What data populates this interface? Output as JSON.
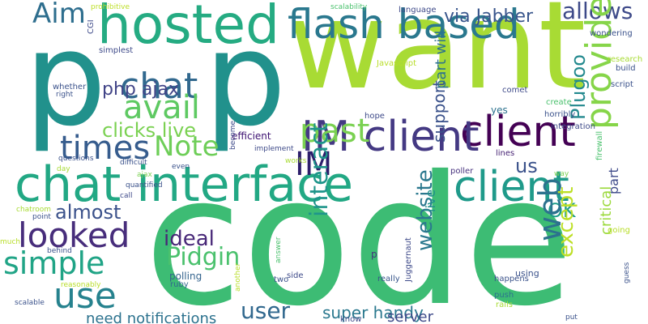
{
  "cloud": {
    "background": "#ffffff",
    "words": [
      {
        "text": "code",
        "color": "#3dbc74"
      },
      {
        "text": "want",
        "color": "#a8db34"
      },
      {
        "text": "p",
        "color": "#21918c"
      },
      {
        "text": "p",
        "color": "#21918c"
      },
      {
        "text": "hosted",
        "color": "#25ab82"
      },
      {
        "text": "flash based",
        "color": "#2a788e"
      },
      {
        "text": "chat interface",
        "color": "#22a884"
      },
      {
        "text": "client",
        "color": "#440154"
      },
      {
        "text": "IM client",
        "color": "#443983"
      },
      {
        "text": "client",
        "color": "#1f9a8a"
      },
      {
        "text": "interface",
        "color": "#2c728e"
      },
      {
        "text": "chat",
        "color": "#31688e"
      },
      {
        "text": "avail",
        "color": "#5ec962"
      },
      {
        "text": "times",
        "color": "#365c8d"
      },
      {
        "text": "past",
        "color": "#7ad151"
      },
      {
        "text": "Note",
        "color": "#6ece58"
      },
      {
        "text": "looked",
        "color": "#472d7b"
      },
      {
        "text": "simple",
        "color": "#20a486"
      },
      {
        "text": "use",
        "color": "#26828e"
      },
      {
        "text": "Aim",
        "color": "#2e6e8e"
      },
      {
        "text": "allows",
        "color": "#3e4a89"
      },
      {
        "text": "via Jabber",
        "color": "#39568c"
      },
      {
        "text": "php ajax",
        "color": "#414487"
      },
      {
        "text": "clicks live",
        "color": "#7ad151"
      },
      {
        "text": "almost",
        "color": "#3b528b"
      },
      {
        "text": "ideal",
        "color": "#482878"
      },
      {
        "text": "Pidgin",
        "color": "#4ac16d"
      },
      {
        "text": "user",
        "color": "#31688e"
      },
      {
        "text": "need notifications",
        "color": "#2c728e"
      },
      {
        "text": "IM",
        "color": "#2d1e6b"
      },
      {
        "text": "us",
        "color": "#3b528b"
      },
      {
        "text": "OK",
        "color": "#1e9c89"
      },
      {
        "text": "super handy",
        "color": "#2a788e"
      },
      {
        "text": "server",
        "color": "#3e4a89"
      },
      {
        "text": "Plugoo",
        "color": "#23898e"
      },
      {
        "text": "provide",
        "color": "#86d549"
      },
      {
        "text": "web",
        "color": "#2c728e"
      },
      {
        "text": "website",
        "color": "#2a788e"
      },
      {
        "text": "interact",
        "color": "#1f958b"
      },
      {
        "text": "except",
        "color": "#bddf26"
      },
      {
        "text": "support",
        "color": "#3b528b"
      },
      {
        "text": "part will",
        "color": "#2c728e"
      },
      {
        "text": "live",
        "color": "#21918c"
      },
      {
        "text": "part",
        "color": "#3e4a89"
      },
      {
        "text": "critical",
        "color": "#9bd93c"
      },
      {
        "text": "efficient",
        "color": "#3b0f70"
      },
      {
        "text": "polling",
        "color": "#33638d"
      },
      {
        "text": "ruby",
        "color": "#31688e"
      },
      {
        "text": "side",
        "color": "#3e4a89"
      },
      {
        "text": "p",
        "color": "#46327e"
      },
      {
        "text": "yes",
        "color": "#2c728e"
      },
      {
        "text": "lines",
        "color": "#482475"
      },
      {
        "text": "using",
        "color": "#3b528b"
      },
      {
        "text": "happens",
        "color": "#3b528b"
      },
      {
        "text": "push",
        "color": "#2c728e"
      },
      {
        "text": "know",
        "color": "#3e4a89"
      },
      {
        "text": "two",
        "color": "#3b528b"
      },
      {
        "text": "really",
        "color": "#39568c"
      },
      {
        "text": "Juggernaut",
        "color": "#3e4a89"
      },
      {
        "text": "answer",
        "color": "#4ac16d"
      },
      {
        "text": "rails",
        "color": "#a8db34"
      },
      {
        "text": "way",
        "color": "#7ad151"
      },
      {
        "text": "poller",
        "color": "#46327e"
      },
      {
        "text": "going",
        "color": "#b8de29"
      },
      {
        "text": "firewall",
        "color": "#4ac16d"
      },
      {
        "text": "hope",
        "color": "#3e4a89"
      },
      {
        "text": "comet",
        "color": "#3e4a89"
      },
      {
        "text": "create",
        "color": "#4ac16d"
      },
      {
        "text": "horribly",
        "color": "#3b528b"
      },
      {
        "text": "integration",
        "color": "#3e4a89"
      },
      {
        "text": "script",
        "color": "#3b528b"
      },
      {
        "text": "build",
        "color": "#3b528b"
      },
      {
        "text": "research",
        "color": "#a8db34"
      },
      {
        "text": "wondering",
        "color": "#3b528b"
      },
      {
        "text": "language",
        "color": "#3e4a89"
      },
      {
        "text": "scalability",
        "color": "#4ac16d"
      },
      {
        "text": "Javascript",
        "color": "#b8de29"
      },
      {
        "text": "prohibitive",
        "color": "#bddf26"
      },
      {
        "text": "CGI",
        "color": "#3e4a89"
      },
      {
        "text": "simplest",
        "color": "#3e4a89"
      },
      {
        "text": "whether",
        "color": "#3b528b"
      },
      {
        "text": "right",
        "color": "#3b528b"
      },
      {
        "text": "implement",
        "color": "#3e4a89"
      },
      {
        "text": "become",
        "color": "#3e4a89"
      },
      {
        "text": "even",
        "color": "#3b528b"
      },
      {
        "text": "works",
        "color": "#a8db34"
      },
      {
        "text": "questions",
        "color": "#3b528b"
      },
      {
        "text": "day",
        "color": "#a8db34"
      },
      {
        "text": "difficult",
        "color": "#3b528b"
      },
      {
        "text": "quantified",
        "color": "#3b528b"
      },
      {
        "text": "ajax",
        "color": "#7ad151"
      },
      {
        "text": "call",
        "color": "#3e4a89"
      },
      {
        "text": "chatroom",
        "color": "#a8db34"
      },
      {
        "text": "point",
        "color": "#3b528b"
      },
      {
        "text": "much",
        "color": "#b8de29"
      },
      {
        "text": "behind",
        "color": "#3b528b"
      },
      {
        "text": "reasonably",
        "color": "#b8de29"
      },
      {
        "text": "scalable",
        "color": "#3b528b"
      },
      {
        "text": "another",
        "color": "#b8de29"
      },
      {
        "text": "put",
        "color": "#3b528b"
      },
      {
        "text": "guess",
        "color": "#3b528b"
      }
    ]
  }
}
